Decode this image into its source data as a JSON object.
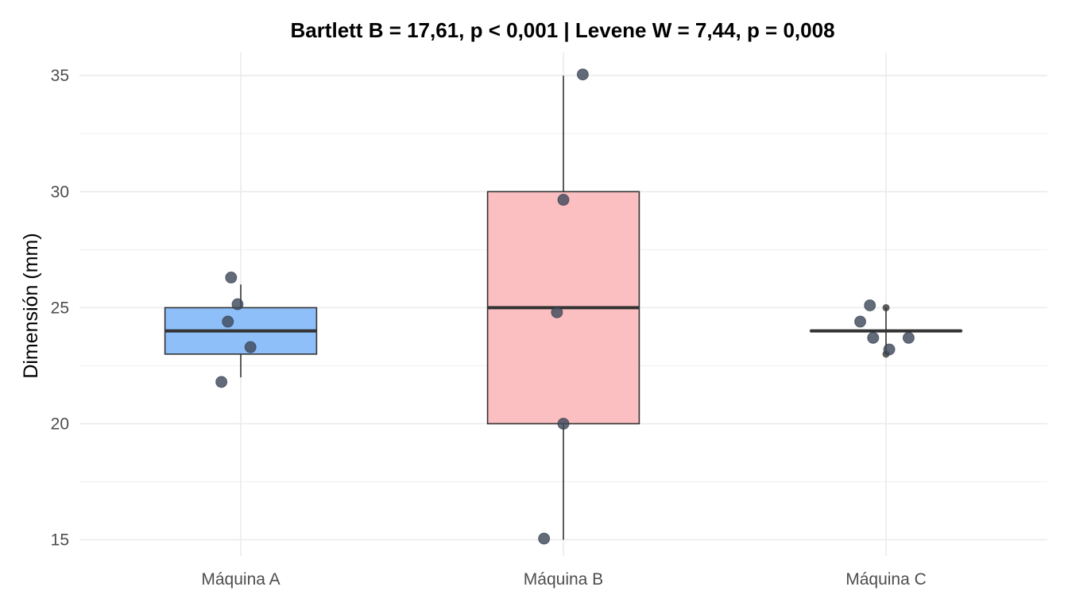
{
  "chart_data": {
    "type": "boxplot",
    "title": "Bartlett B = 17,61, p < 0,001    |    Levene W = 7,44, p = 0,008",
    "xlabel": "",
    "ylabel": "Dimensión (mm)",
    "ylim": [
      14.3,
      36.0
    ],
    "yticks": [
      15,
      20,
      25,
      30,
      35
    ],
    "grid": true,
    "legend": "none",
    "categories": [
      "Máquina A",
      "Máquina B",
      "Máquina C"
    ],
    "boxes": [
      {
        "name": "Máquina A",
        "color": "#8ebff8",
        "min": 22,
        "q1": 23,
        "median": 24,
        "q3": 25,
        "max": 26,
        "points": [
          [
            -0.03,
            26.3
          ],
          [
            -0.04,
            24.4
          ],
          [
            -0.01,
            25.15
          ],
          [
            0.03,
            23.3
          ],
          [
            -0.06,
            21.8
          ]
        ]
      },
      {
        "name": "Máquina B",
        "color": "#fbbfc1",
        "min": 15,
        "q1": 20,
        "median": 25,
        "q3": 30,
        "max": 35,
        "points": [
          [
            0.06,
            35.05
          ],
          [
            0.0,
            29.65
          ],
          [
            -0.02,
            24.8
          ],
          [
            0.0,
            20.0
          ],
          [
            -0.06,
            15.05
          ]
        ]
      },
      {
        "name": "Máquina C",
        "color": "#8ebff8",
        "min": 23,
        "q1": 24,
        "median": 24,
        "q3": 24,
        "max": 25,
        "outliers": [
          25,
          23
        ],
        "points": [
          [
            -0.05,
            25.1
          ],
          [
            -0.08,
            24.4
          ],
          [
            -0.04,
            23.7
          ],
          [
            0.07,
            23.7
          ],
          [
            0.01,
            23.2
          ]
        ]
      }
    ]
  },
  "colors": {
    "grid": "#ebebeb",
    "box_stroke": "#333333",
    "point": "#3f4a5c"
  }
}
